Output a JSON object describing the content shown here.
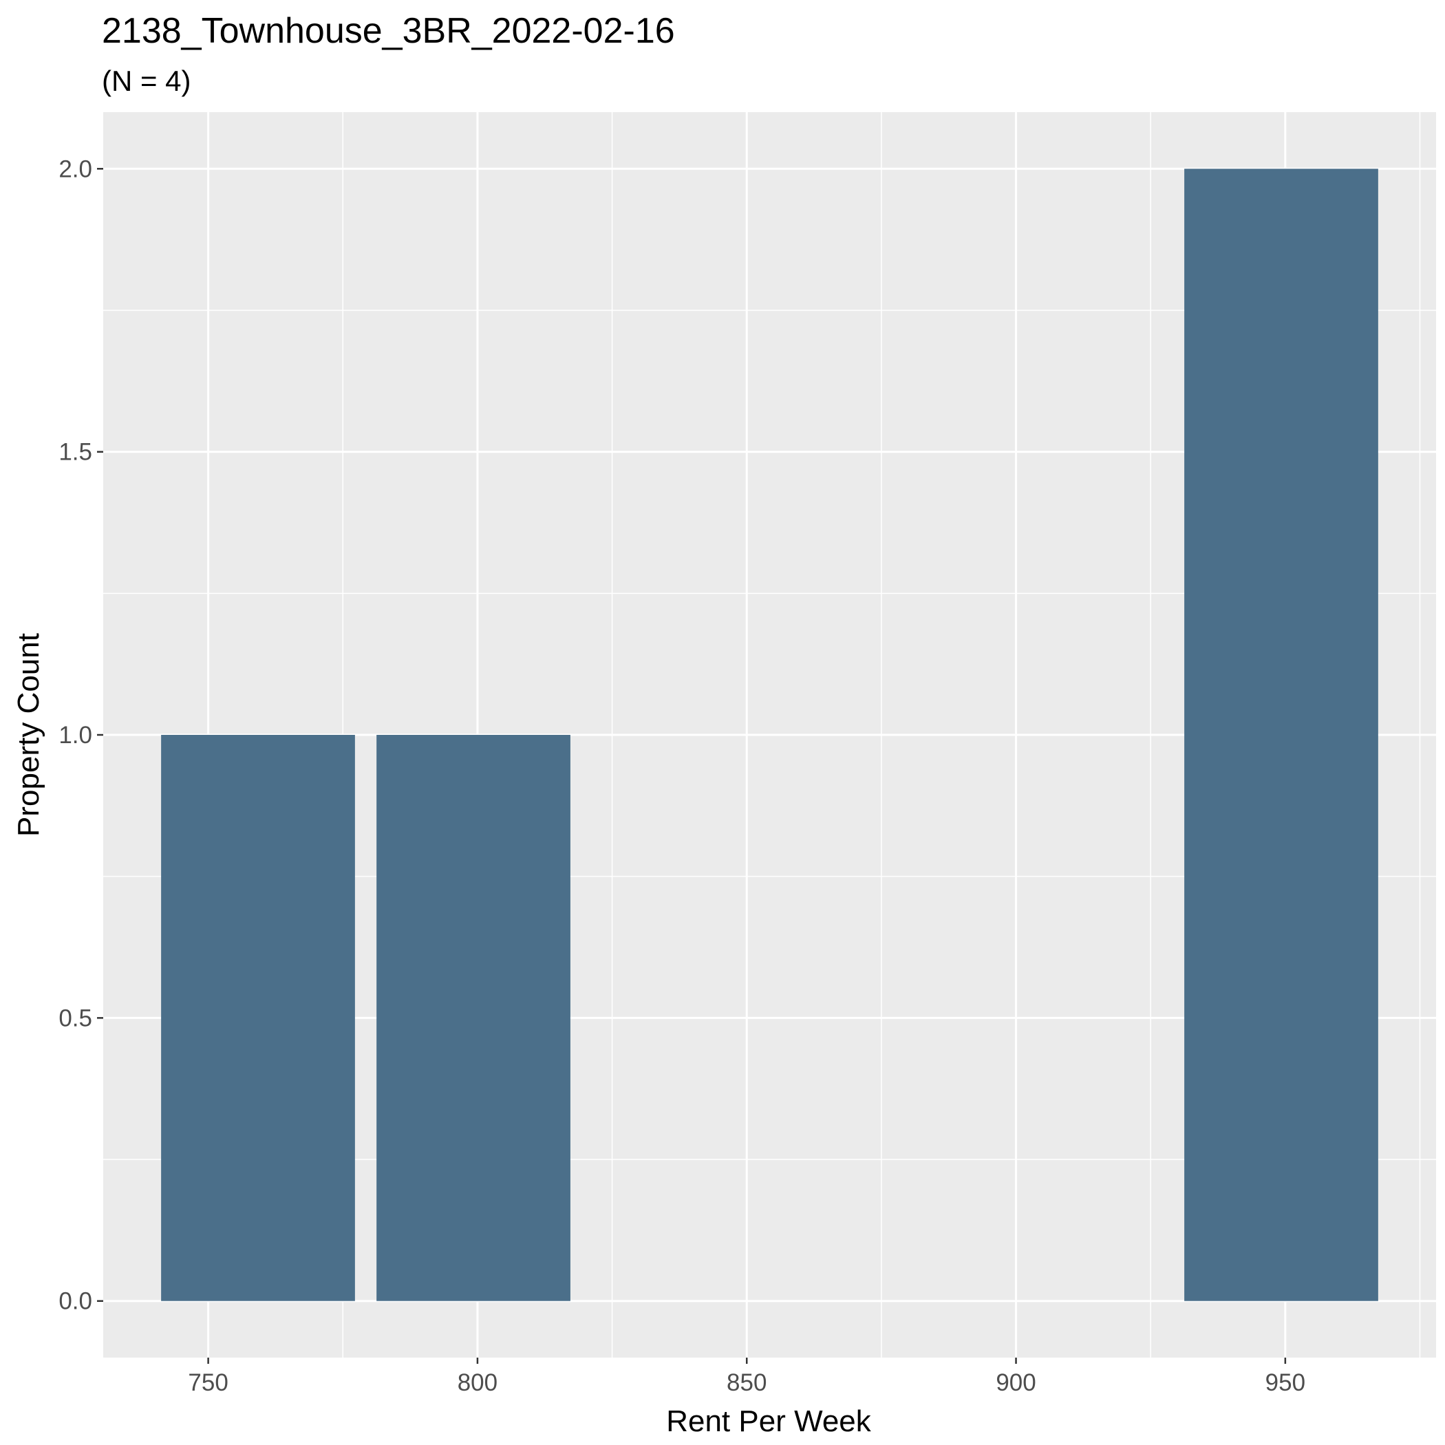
{
  "chart_data": {
    "type": "bar",
    "title": "2138_Townhouse_3BR_2022-02-16",
    "subtitle": "(N = 4)",
    "xlabel": "Rent Per Week",
    "ylabel": "Property Count",
    "bars": [
      {
        "x_start": 741.25,
        "x_end": 777.25,
        "value": 1
      },
      {
        "x_start": 781.25,
        "x_end": 817.25,
        "value": 1
      },
      {
        "x_start": 931.25,
        "x_end": 967.25,
        "value": 2
      }
    ],
    "xlim": [
      730.5,
      978
    ],
    "ylim": [
      -0.1,
      2.1
    ],
    "x_ticks": [
      750,
      800,
      850,
      900,
      950
    ],
    "x_tick_labels": [
      "750",
      "800",
      "850",
      "900",
      "950"
    ],
    "x_minor_ticks": [
      775,
      825,
      875,
      925,
      975
    ],
    "y_ticks": [
      0,
      0.5,
      1,
      1.5,
      2
    ],
    "y_tick_labels": [
      "0.0",
      "0.5",
      "1.0",
      "1.5",
      "2.0"
    ],
    "y_minor_ticks": [
      0.25,
      0.75,
      1.25,
      1.75
    ],
    "grid": true,
    "colors": {
      "bar": "#4b6f8a",
      "panel": "#ebebeb",
      "grid": "#ffffff",
      "tick": "#333333"
    }
  }
}
